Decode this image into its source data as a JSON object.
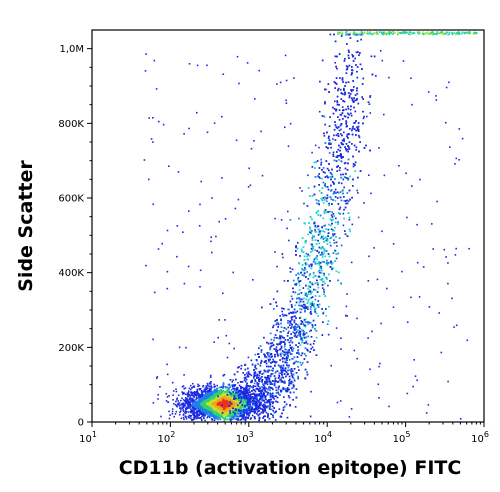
{
  "chart_data": {
    "type": "scatter",
    "style": "density-dot-plot (flow cytometry)",
    "title": "",
    "xlabel": "CD11b (activation epitope) FITC",
    "ylabel": "Side Scatter",
    "x_scale": "log",
    "xlim": [
      10,
      1000000
    ],
    "y_scale": "linear",
    "ylim": [
      0,
      1050000
    ],
    "x_ticks": [
      {
        "value": 10,
        "base": "10",
        "exp": "1"
      },
      {
        "value": 100,
        "base": "10",
        "exp": "2"
      },
      {
        "value": 1000,
        "base": "10",
        "exp": "3"
      },
      {
        "value": 10000,
        "base": "10",
        "exp": "4"
      },
      {
        "value": 100000,
        "base": "10",
        "exp": "5"
      },
      {
        "value": 1000000,
        "base": "10",
        "exp": "6"
      }
    ],
    "y_ticks": [
      {
        "value": 0,
        "label": "0"
      },
      {
        "value": 200000,
        "label": "200K"
      },
      {
        "value": 400000,
        "label": "400K"
      },
      {
        "value": 600000,
        "label": "600K"
      },
      {
        "value": 800000,
        "label": "800K"
      },
      {
        "value": 1000000,
        "label": "1,0M"
      }
    ],
    "grid": false,
    "legend": "none",
    "density_colors": [
      "#1c2be0",
      "#1f7fe8",
      "#19d6c8",
      "#2fd36b",
      "#c9e02a",
      "#f5a31c",
      "#e8331c"
    ],
    "populations": [
      {
        "name": "low CD11b / low SSC cluster (peak)",
        "x_center": 450,
        "y_center": 50000,
        "density": "very high"
      },
      {
        "name": "ascending CD11b+ / SSC-high arm",
        "x_center": 15000,
        "y_center": 420000,
        "density": "medium"
      }
    ],
    "points_estimated": 9000
  }
}
